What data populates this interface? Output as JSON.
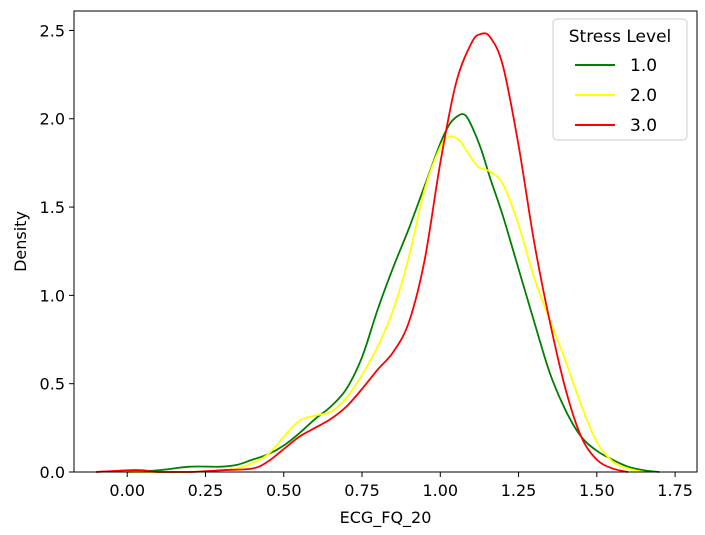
{
  "chart_data": {
    "type": "line",
    "subtype": "kde",
    "title": "",
    "xlabel": "ECG_FQ_20",
    "ylabel": "Density",
    "xlim": [
      -0.17,
      1.82
    ],
    "ylim": [
      0,
      2.61
    ],
    "xticks": [
      0.0,
      0.25,
      0.5,
      0.75,
      1.0,
      1.25,
      1.5,
      1.75
    ],
    "xtick_labels": [
      "0.00",
      "0.25",
      "0.50",
      "0.75",
      "1.00",
      "1.25",
      "1.50",
      "1.75"
    ],
    "yticks": [
      0.0,
      0.5,
      1.0,
      1.5,
      2.0,
      2.5
    ],
    "ytick_labels": [
      "0.0",
      "0.5",
      "1.0",
      "1.5",
      "2.0",
      "2.5"
    ],
    "grid": false,
    "legend": {
      "title": "Stress Level",
      "position": "top-right"
    },
    "series": [
      {
        "name": "1.0",
        "color": "#008000",
        "x": [
          0.0,
          0.1,
          0.2,
          0.3,
          0.35,
          0.4,
          0.45,
          0.5,
          0.55,
          0.6,
          0.65,
          0.7,
          0.75,
          0.8,
          0.85,
          0.9,
          0.95,
          1.0,
          1.03,
          1.06,
          1.08,
          1.1,
          1.13,
          1.16,
          1.2,
          1.25,
          1.3,
          1.35,
          1.4,
          1.45,
          1.5,
          1.55,
          1.6,
          1.65,
          1.7
        ],
        "y": [
          0.0,
          0.01,
          0.03,
          0.03,
          0.04,
          0.07,
          0.1,
          0.15,
          0.22,
          0.3,
          0.37,
          0.47,
          0.65,
          0.92,
          1.16,
          1.38,
          1.62,
          1.86,
          1.97,
          2.02,
          2.02,
          1.96,
          1.83,
          1.66,
          1.45,
          1.15,
          0.85,
          0.56,
          0.35,
          0.2,
          0.12,
          0.07,
          0.03,
          0.01,
          0.0
        ]
      },
      {
        "name": "2.0",
        "color": "#ffff00",
        "x": [
          0.0,
          0.1,
          0.2,
          0.3,
          0.35,
          0.4,
          0.45,
          0.5,
          0.55,
          0.6,
          0.65,
          0.7,
          0.75,
          0.8,
          0.85,
          0.9,
          0.95,
          1.0,
          1.03,
          1.06,
          1.08,
          1.12,
          1.16,
          1.2,
          1.25,
          1.3,
          1.35,
          1.4,
          1.45,
          1.5,
          1.55,
          1.6,
          1.65
        ],
        "y": [
          0.0,
          0.0,
          0.0,
          0.01,
          0.02,
          0.05,
          0.1,
          0.2,
          0.29,
          0.32,
          0.34,
          0.42,
          0.55,
          0.71,
          0.92,
          1.22,
          1.6,
          1.84,
          1.9,
          1.88,
          1.83,
          1.73,
          1.7,
          1.63,
          1.4,
          1.1,
          0.86,
          0.63,
          0.38,
          0.17,
          0.06,
          0.02,
          0.0
        ]
      },
      {
        "name": "3.0",
        "color": "#ff0000",
        "x": [
          -0.1,
          0.0,
          0.05,
          0.1,
          0.2,
          0.3,
          0.4,
          0.45,
          0.5,
          0.55,
          0.6,
          0.65,
          0.7,
          0.75,
          0.8,
          0.85,
          0.9,
          0.95,
          1.0,
          1.05,
          1.1,
          1.13,
          1.16,
          1.2,
          1.25,
          1.3,
          1.35,
          1.4,
          1.45,
          1.5,
          1.55,
          1.6
        ],
        "y": [
          0.0,
          0.01,
          0.01,
          0.0,
          0.0,
          0.01,
          0.02,
          0.06,
          0.13,
          0.2,
          0.25,
          0.3,
          0.37,
          0.47,
          0.58,
          0.68,
          0.85,
          1.2,
          1.75,
          2.2,
          2.43,
          2.48,
          2.46,
          2.3,
          1.85,
          1.3,
          0.85,
          0.47,
          0.2,
          0.07,
          0.02,
          0.0
        ]
      }
    ]
  }
}
